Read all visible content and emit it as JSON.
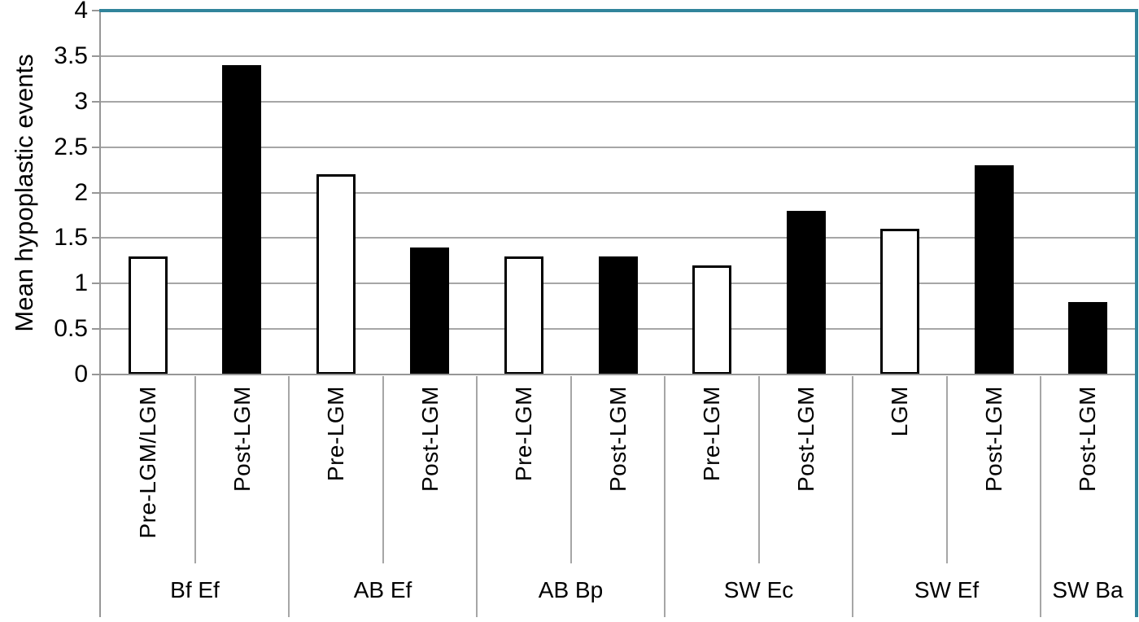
{
  "chart_data": {
    "type": "bar",
    "title": "",
    "xlabel": "",
    "ylabel": "Mean hypoplastic events",
    "ylim": [
      0,
      4
    ],
    "ytick_step": 0.5,
    "ytick_labels": [
      "0",
      "0.5",
      "1",
      "1.5",
      "2",
      "2.5",
      "3",
      "3.5",
      "4"
    ],
    "grid": "horizontal-on",
    "legend": "none",
    "x_axis_structure": "two-level: period label per bar (rotated 90deg) above group label",
    "groups": [
      {
        "label": "Bf Ef",
        "bars": [
          {
            "label": "Pre-LGM/LGM",
            "value": 1.3,
            "fill": "white"
          },
          {
            "label": "Post-LGM",
            "value": 3.4,
            "fill": "black"
          }
        ]
      },
      {
        "label": "AB Ef",
        "bars": [
          {
            "label": "Pre-LGM",
            "value": 2.2,
            "fill": "white"
          },
          {
            "label": "Post-LGM",
            "value": 1.4,
            "fill": "black"
          }
        ]
      },
      {
        "label": "AB Bp",
        "bars": [
          {
            "label": "Pre-LGM",
            "value": 1.3,
            "fill": "white"
          },
          {
            "label": "Post-LGM",
            "value": 1.3,
            "fill": "black"
          }
        ]
      },
      {
        "label": "SW Ec",
        "bars": [
          {
            "label": "Pre-LGM",
            "value": 1.2,
            "fill": "white"
          },
          {
            "label": "Post-LGM",
            "value": 1.8,
            "fill": "black"
          }
        ]
      },
      {
        "label": "SW Ef",
        "bars": [
          {
            "label": "LGM",
            "value": 1.6,
            "fill": "white"
          },
          {
            "label": "Post-LGM",
            "value": 2.3,
            "fill": "black"
          }
        ]
      },
      {
        "label": "SW Ba",
        "bars": [
          {
            "label": "Post-LGM",
            "value": 0.8,
            "fill": "black"
          }
        ]
      }
    ],
    "colors": {
      "accent_border": "#31849B",
      "gridline": "#A6A6A6",
      "axis": "#969696",
      "bar_white_fill": "#FFFFFF",
      "bar_black_fill": "#000000",
      "bar_outline": "#000000",
      "text": "#000000"
    }
  }
}
